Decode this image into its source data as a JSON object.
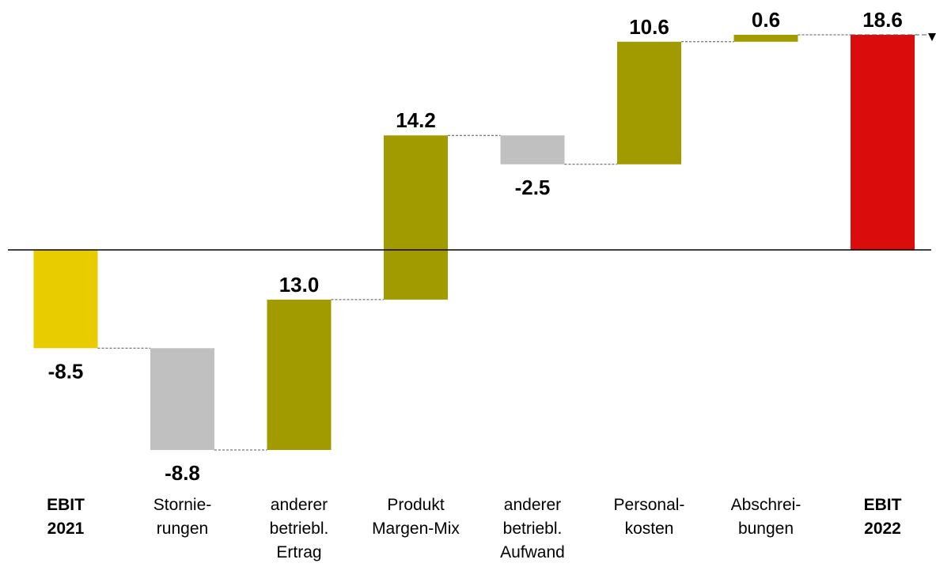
{
  "chart_data": {
    "type": "waterfall",
    "categories": [
      "EBIT\n2021",
      "Stornie-\nrungen",
      "anderer\nbetriebl.\nErtrag",
      "Produkt\nMargen-Mix",
      "anderer\nbetriebl.\nAufwand",
      "Personal-\nkosten",
      "Abschrei-\nbungen",
      "EBIT\n2022"
    ],
    "values": [
      -8.5,
      -8.8,
      13.0,
      14.2,
      -2.5,
      10.6,
      0.6,
      18.6
    ],
    "value_labels": [
      "-8.5",
      "-8.8",
      "13.0",
      "14.2",
      "-2.5",
      "10.6",
      "0.6",
      "18.6"
    ],
    "bar_kinds": [
      "total",
      "decrease",
      "increase",
      "increase",
      "decrease",
      "increase",
      "increase",
      "total"
    ],
    "bold_categories": [
      true,
      false,
      false,
      false,
      false,
      false,
      false,
      true
    ],
    "colors": {
      "start_total": "#E8CC00",
      "end_total": "#DA0C0C",
      "increase": "#A19B00",
      "decrease": "#C0C0C0",
      "connector": "#555555",
      "baseline": "#000000"
    },
    "ylim": [
      -17.3,
      18.6
    ],
    "grid": false,
    "legend": "none"
  }
}
